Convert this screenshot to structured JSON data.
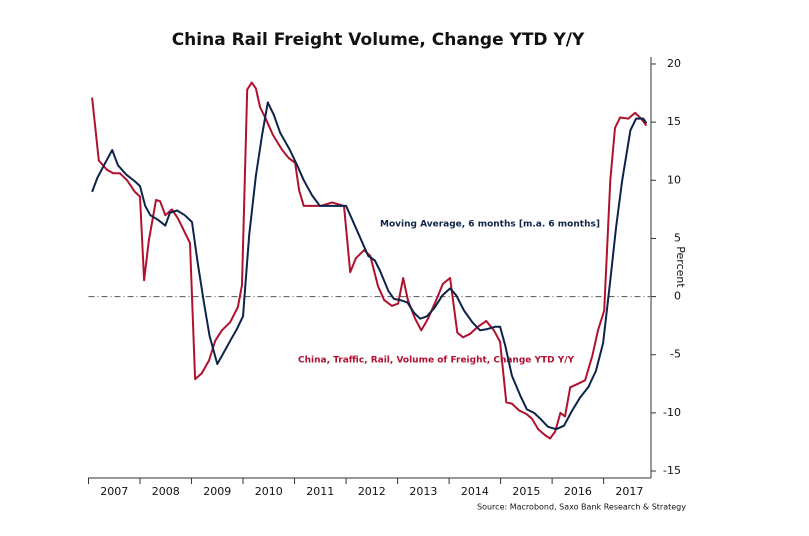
{
  "chart_data": {
    "type": "line",
    "title": "China Rail Freight Volume, Change YTD Y/Y",
    "y_label": "Percent",
    "source": "Source: Macrobond, Saxo Bank Research & Strategy",
    "annotations": [
      "Moving Average, 6 months [m.a. 6 months]",
      "China, Traffic, Rail, Volume of Freight, Change YTD Y/Y"
    ],
    "xlim": [
      2007,
      2017.9
    ],
    "xticks": [
      2007,
      2008,
      2009,
      2010,
      2011,
      2012,
      2013,
      2014,
      2015,
      2016,
      2017
    ],
    "ylim": [
      -15.6,
      20.6
    ],
    "yticks": [
      -15,
      -10,
      -5,
      0,
      5,
      10,
      15,
      20
    ],
    "zero_line": true,
    "series": [
      {
        "name": "China, Traffic, Rail, Volume of Freight, Change YTD Y/Y",
        "color": "#b0112e",
        "x": [
          2007.07,
          2007.2,
          2007.36,
          2007.48,
          2007.61,
          2007.75,
          2007.9,
          2008.0,
          2008.08,
          2008.17,
          2008.31,
          2008.39,
          2008.49,
          2008.62,
          2008.74,
          2008.97,
          2009.07,
          2009.2,
          2009.34,
          2009.46,
          2009.59,
          2009.75,
          2009.9,
          2009.98,
          2010.08,
          2010.17,
          2010.25,
          2010.33,
          2010.45,
          2010.58,
          2010.76,
          2010.89,
          2011.01,
          2011.09,
          2011.18,
          2011.34,
          2011.51,
          2011.73,
          2011.96,
          2012.08,
          2012.19,
          2012.35,
          2012.47,
          2012.62,
          2012.74,
          2012.89,
          2013.01,
          2013.11,
          2013.2,
          2013.34,
          2013.46,
          2013.59,
          2013.75,
          2013.88,
          2014.02,
          2014.16,
          2014.27,
          2014.41,
          2014.56,
          2014.72,
          2014.87,
          2014.99,
          2015.11,
          2015.22,
          2015.36,
          2015.5,
          2015.61,
          2015.73,
          2015.86,
          2015.96,
          2016.06,
          2016.16,
          2016.25,
          2016.35,
          2016.5,
          2016.64,
          2016.78,
          2016.89,
          2017.01,
          2017.13,
          2017.22,
          2017.32,
          2017.48,
          2017.61,
          2017.73,
          2017.83
        ],
        "values": [
          17.1,
          11.7,
          10.9,
          10.6,
          10.6,
          10,
          9,
          8.6,
          1.4,
          4.8,
          8.3,
          8.2,
          7,
          7.5,
          6.7,
          4.6,
          -7.1,
          -6.6,
          -5.5,
          -3.8,
          -2.9,
          -2.2,
          -0.9,
          1,
          17.8,
          18.4,
          17.9,
          16.3,
          15.2,
          13.9,
          12.6,
          11.9,
          11.5,
          9.1,
          7.8,
          7.8,
          7.8,
          8.1,
          7.8,
          2.1,
          3.3,
          4,
          3.5,
          0.9,
          -0.3,
          -0.8,
          -0.6,
          1.6,
          -0.3,
          -1.9,
          -2.9,
          -1.9,
          -0.3,
          1.1,
          1.6,
          -3.1,
          -3.5,
          -3.2,
          -2.6,
          -2.1,
          -2.9,
          -3.9,
          -9.1,
          -9.2,
          -9.8,
          -10.1,
          -10.5,
          -11.4,
          -11.9,
          -12.2,
          -11.6,
          -10,
          -10.3,
          -7.8,
          -7.5,
          -7.2,
          -5.1,
          -2.9,
          -1.2,
          10,
          14.5,
          15.4,
          15.3,
          15.8,
          15.3,
          14.7
        ]
      },
      {
        "name": "Moving Average, 6 months [m.a. 6 months]",
        "color": "#0d2449",
        "x": [
          2007.07,
          2007.17,
          2007.3,
          2007.46,
          2007.57,
          2007.73,
          2007.9,
          2008.0,
          2008.1,
          2008.2,
          2008.35,
          2008.49,
          2008.58,
          2008.72,
          2008.87,
          2009.01,
          2009.12,
          2009.24,
          2009.35,
          2009.5,
          2009.59,
          2009.75,
          2009.88,
          2010.0,
          2010.12,
          2010.25,
          2010.37,
          2010.48,
          2010.6,
          2010.72,
          2010.91,
          2011.05,
          2011.18,
          2011.34,
          2011.49,
          2011.73,
          2012.0,
          2012.12,
          2012.27,
          2012.43,
          2012.56,
          2012.66,
          2012.82,
          2012.93,
          2013.05,
          2013.19,
          2013.32,
          2013.44,
          2013.57,
          2013.71,
          2013.87,
          2014.02,
          2014.14,
          2014.29,
          2014.45,
          2014.6,
          2014.74,
          2014.89,
          2014.99,
          2015.09,
          2015.22,
          2015.38,
          2015.51,
          2015.65,
          2015.77,
          2015.92,
          2016.08,
          2016.23,
          2016.39,
          2016.54,
          2016.7,
          2016.85,
          2016.99,
          2017.13,
          2017.24,
          2017.36,
          2017.52,
          2017.63,
          2017.77,
          2017.83
        ],
        "values": [
          9,
          10.2,
          11.3,
          12.6,
          11.3,
          10.5,
          9.9,
          9.5,
          7.8,
          7,
          6.6,
          6.1,
          7.2,
          7.4,
          7,
          6.4,
          2.9,
          -0.5,
          -3.4,
          -5.8,
          -5.1,
          -3.8,
          -2.8,
          -1.7,
          5.3,
          10.4,
          13.9,
          16.7,
          15.6,
          14.1,
          12.6,
          11.3,
          10,
          8.7,
          7.8,
          7.8,
          7.8,
          6.6,
          5.1,
          3.5,
          3.1,
          2.2,
          0.5,
          -0.2,
          -0.3,
          -0.5,
          -1.4,
          -1.9,
          -1.7,
          -1,
          0.1,
          0.7,
          0.1,
          -1.2,
          -2.2,
          -2.9,
          -2.8,
          -2.6,
          -2.6,
          -4.2,
          -6.8,
          -8.5,
          -9.7,
          -10,
          -10.5,
          -11.2,
          -11.4,
          -11.1,
          -9.8,
          -8.7,
          -7.8,
          -6.4,
          -4,
          1.4,
          5.9,
          10,
          14.3,
          15.3,
          15.3,
          14.9
        ]
      }
    ]
  }
}
